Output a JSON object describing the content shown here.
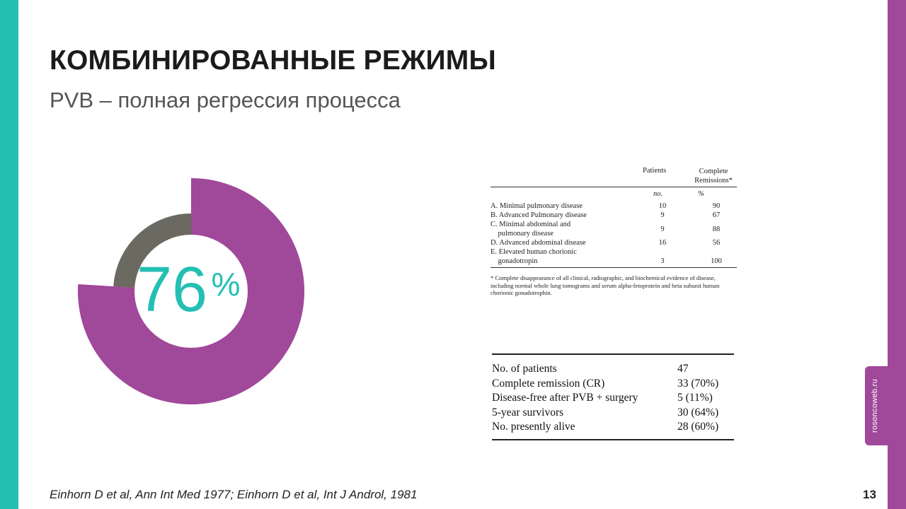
{
  "colors": {
    "teal": "#24bfb3",
    "purple": "#a0489a",
    "gray": "#6b6a60"
  },
  "slide": {
    "title": "КОМБИНИРОВАННЫЕ РЕЖИМЫ",
    "subtitle": "PVB – полная регрессия процесса",
    "citation": "Einhorn D et al, Ann Int Med 1977; Einhorn D et al, Int J Androl, 1981",
    "page_number": "13",
    "logo": "rosoncoweb.ru"
  },
  "donut": {
    "number": "76",
    "unit": "%",
    "value_percent": 76
  },
  "table1": {
    "col_patients": "Patients",
    "col_remissions_line1": "Complete",
    "col_remissions_line2": "Remissions*",
    "unit_patients": "no.",
    "unit_remissions": "%",
    "rows": [
      {
        "l1": "A. Minimal pulmonary disease",
        "l2": "",
        "n": "10",
        "p": "90"
      },
      {
        "l1": "B. Advanced Pulmonary disease",
        "l2": "",
        "n": "9",
        "p": "67"
      },
      {
        "l1": "C. Minimal abdominal and",
        "l2": "pulmonary disease",
        "n": "9",
        "p": "88"
      },
      {
        "l1": "D. Advanced abdominal disease",
        "l2": "",
        "n": "16",
        "p": "56"
      },
      {
        "l1": "E. Elevated human chorionic",
        "l2": "gonadotropin",
        "n": "3",
        "p": "100"
      }
    ],
    "footnote": "* Complete disappearance of all clinical, radiographic, and biochemical evidence of disease, including normal whole lung tomograms and serum alpha-fetoprotein and beta subunit human chorionic gonadotrophin."
  },
  "table2": {
    "rows": [
      {
        "label": "No. of patients",
        "value": "47"
      },
      {
        "label": "Complete remission (CR)",
        "value": "33 (70%)"
      },
      {
        "label": "Disease-free after PVB + surgery",
        "value": "5 (11%)"
      },
      {
        "label": "5-year survivors",
        "value": "30 (64%)"
      },
      {
        "label": "No. presently alive",
        "value": "28 (60%)"
      }
    ]
  }
}
